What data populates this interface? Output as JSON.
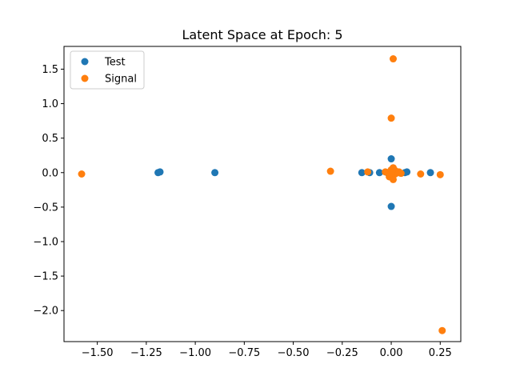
{
  "chart_data": {
    "type": "scatter",
    "title": "Latent Space at Epoch: 5",
    "xlabel": "",
    "ylabel": "",
    "xlim": [
      -1.67,
      0.355
    ],
    "ylim": [
      -2.45,
      1.83
    ],
    "xticks": [
      -1.5,
      -1.25,
      -1.0,
      -0.75,
      -0.5,
      -0.25,
      0.0,
      0.25
    ],
    "xtick_labels": [
      "−1.50",
      "−1.25",
      "−1.00",
      "−0.75",
      "−0.50",
      "−0.25",
      "0.00",
      "0.25"
    ],
    "yticks": [
      1.5,
      1.0,
      0.5,
      0.0,
      -0.5,
      -1.0,
      -1.5,
      -2.0
    ],
    "ytick_labels": [
      "1.5",
      "1.0",
      "0.5",
      "0.0",
      "−0.5",
      "−1.0",
      "−1.5",
      "−2.0"
    ],
    "grid": false,
    "legend_position": "top-left",
    "series": [
      {
        "name": "Test",
        "color": "#1f77b4",
        "points": [
          [
            -1.19,
            0.0
          ],
          [
            -1.18,
            0.01
          ],
          [
            -0.9,
            0.0
          ],
          [
            -0.15,
            0.0
          ],
          [
            -0.11,
            0.0
          ],
          [
            -0.06,
            0.0
          ],
          [
            -0.02,
            0.0
          ],
          [
            0.0,
            0.2
          ],
          [
            0.0,
            -0.49
          ],
          [
            0.02,
            0.0
          ],
          [
            0.04,
            0.0
          ],
          [
            0.07,
            0.0
          ],
          [
            0.08,
            0.01
          ],
          [
            0.2,
            0.0
          ]
        ]
      },
      {
        "name": "Signal",
        "color": "#ff7f0e",
        "points": [
          [
            -1.58,
            -0.02
          ],
          [
            -0.31,
            0.02
          ],
          [
            -0.12,
            0.01
          ],
          [
            0.01,
            1.65
          ],
          [
            0.0,
            0.79
          ],
          [
            -0.03,
            0.01
          ],
          [
            -0.01,
            0.0
          ],
          [
            0.0,
            0.04
          ],
          [
            0.01,
            0.07
          ],
          [
            0.02,
            0.03
          ],
          [
            0.0,
            -0.04
          ],
          [
            -0.01,
            -0.06
          ],
          [
            0.01,
            -0.1
          ],
          [
            0.02,
            -0.02
          ],
          [
            0.03,
            0.0
          ],
          [
            0.04,
            0.01
          ],
          [
            0.05,
            -0.01
          ],
          [
            0.0,
            -0.01
          ],
          [
            0.15,
            -0.02
          ],
          [
            0.25,
            -0.03
          ],
          [
            0.26,
            -2.29
          ]
        ]
      }
    ]
  }
}
